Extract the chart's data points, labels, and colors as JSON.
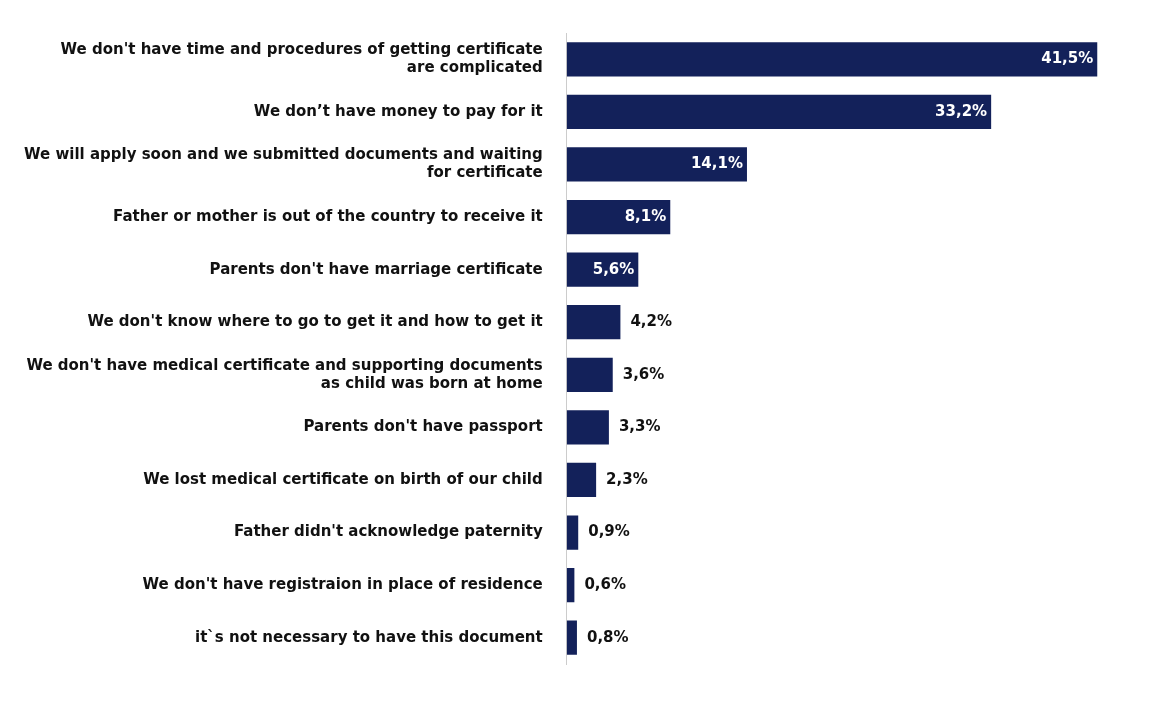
{
  "chart_data": {
    "type": "bar",
    "orientation": "horizontal",
    "tick_labels": "y",
    "legend": false,
    "categories": [
      "We don't have time and procedures of getting certificate are complicated",
      "We don’t have money to pay for it",
      "We will apply soon and we submitted documents and waiting for certificate",
      "Father or mother is out of the country to receive it",
      "Parents don't have marriage certificate",
      "We don't know where to go to get it and how to get it",
      "We don't have medical certificate and supporting documents as child was born at home",
      "Parents don't have passport",
      "We lost medical certificate on birth of our child",
      "Father didn't acknowledge paternity",
      "We don't have registraion in place of residence",
      "it`s not necessary to have this document"
    ],
    "values": [
      41.5,
      33.2,
      14.1,
      8.1,
      5.6,
      4.2,
      3.6,
      3.3,
      2.3,
      0.9,
      0.6,
      0.8
    ],
    "value_labels": [
      "41,5%",
      "33,2%",
      "14,1%",
      "8,1%",
      "5,6%",
      "4,2%",
      "3,6%",
      "3,3%",
      "2,3%",
      "0,9%",
      "0,6%",
      "0,8%"
    ],
    "color": "#13215a"
  }
}
